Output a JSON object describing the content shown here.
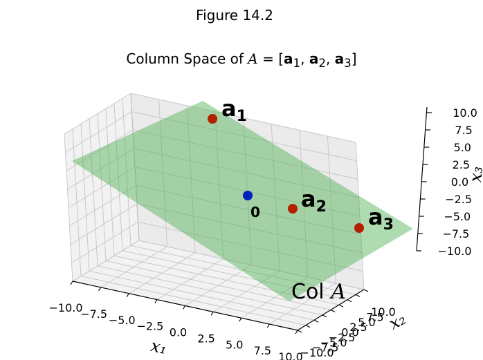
{
  "figure_label": "Figure 14.2",
  "title_prefix": "Column Space of ",
  "title_var": "A",
  "title_eq": " = [",
  "title_a1": "a",
  "title_s1": "1",
  "title_a2": "a",
  "title_s2": "2",
  "title_a3": "a",
  "title_s3": "3",
  "title_close": "]",
  "chart_data": {
    "type": "scatter",
    "projection": "3d",
    "xlabel": "x₁",
    "ylabel": "x₂",
    "zlabel": "x₃",
    "xlim": [
      -10,
      10
    ],
    "ylim": [
      -10,
      10
    ],
    "zlim": [
      -10,
      10
    ],
    "xticks": [
      "−10.0",
      "−7.5",
      "−5.0",
      "−2.5",
      "0.0",
      "2.5",
      "5.0",
      "7.5",
      "10.0"
    ],
    "yticks": [
      "−10.0",
      "−7.5",
      "−5.0",
      "−2.5",
      "0.0",
      "2.5",
      "5.0",
      "7.5",
      "10.0"
    ],
    "zticks": [
      "−10.0",
      "−7.5",
      "−5.0",
      "−2.5",
      "0.0",
      "2.5",
      "5.0",
      "7.5",
      "10.0"
    ],
    "grid": true,
    "points": [
      {
        "label": "a",
        "sub": "1",
        "x": -6.5,
        "y": 6.5,
        "z": 5.5,
        "color": "#b22000"
      },
      {
        "label": "a",
        "sub": "2",
        "x": 2.5,
        "y": 2.0,
        "z": -4.2,
        "color": "#b22000"
      },
      {
        "label": "a",
        "sub": "3",
        "x": 7.2,
        "y": -2.5,
        "z": -9.0,
        "color": "#b22000"
      },
      {
        "label": "0",
        "sub": "",
        "x": 0,
        "y": 0,
        "z": 0,
        "color": "#0022bb"
      }
    ],
    "plane": {
      "label_text": "Col ",
      "label_var": "A",
      "color": "#4caf50",
      "alpha": 0.45
    }
  }
}
